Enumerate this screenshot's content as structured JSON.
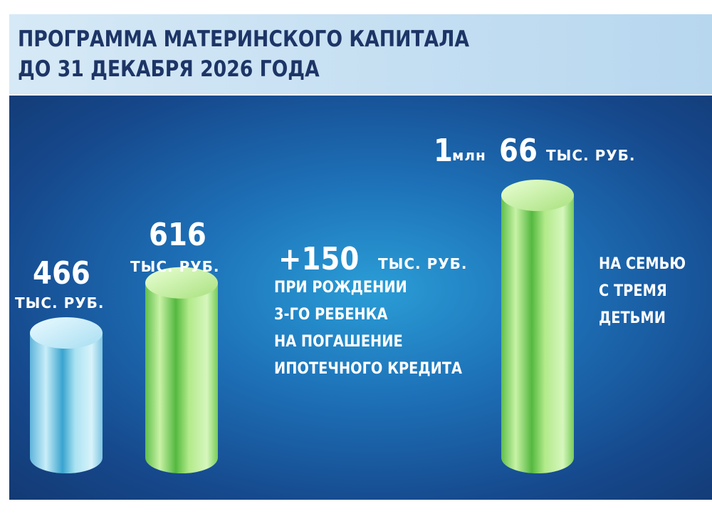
{
  "header": {
    "title_line1": "ПРОГРАММА МАТЕРИНСКОГО КАПИТАЛА",
    "title_line2": "ДО 31 ДЕКАБРЯ 2026 ГОДА"
  },
  "chart_data": {
    "type": "bar",
    "title": "ПРОГРАММА МАТЕРИНСКОГО КАПИТАЛА ДО 31 ДЕКАБРЯ 2026 ГОДА",
    "unit": "тыс. руб.",
    "values": [
      466,
      616,
      1066
    ],
    "labels": [
      {
        "value": "466",
        "unit": "ТЫС. РУБ."
      },
      {
        "value": "616",
        "unit": "ТЫС. РУБ."
      },
      {
        "value_mln": "1",
        "mln": "млн",
        "value": "66",
        "unit": "ТЫС. РУБ."
      }
    ],
    "colors": [
      "#8fd3ee",
      "#8fe07a",
      "#8fe07a"
    ],
    "annotations": {
      "bonus_value": "+150",
      "bonus_unit": "ТЫС. РУБ.",
      "bonus_lines": [
        "ПРИ РОЖДЕНИИ",
        "3-ГО РЕБЕНКА",
        "НА ПОГАШЕНИЕ",
        "ИПОТЕЧНОГО КРЕДИТА"
      ],
      "family_lines": [
        "НА СЕМЬЮ",
        "С ТРЕМЯ",
        "ДЕТЬМИ"
      ]
    }
  }
}
